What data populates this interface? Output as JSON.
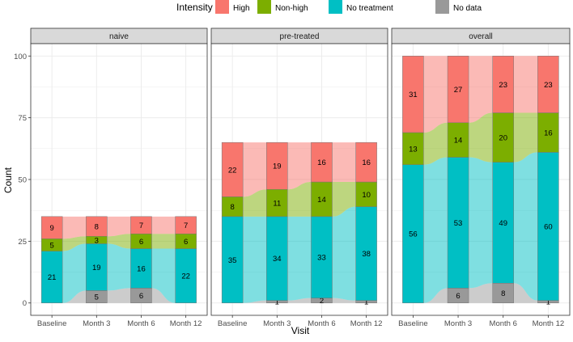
{
  "chart_data": {
    "type": "alluvial-bar",
    "xlabel": "Visit",
    "ylabel": "Count",
    "ylim": [
      0,
      100
    ],
    "yticks": [
      0,
      25,
      50,
      75,
      100
    ],
    "categories": [
      "Baseline",
      "Month 3",
      "Month 6",
      "Month 12"
    ],
    "legend": {
      "title": "Intensity",
      "position": "top",
      "items": [
        {
          "key": "high",
          "label": "High",
          "color": "#F8766D"
        },
        {
          "key": "nonhigh",
          "label": "Non-high",
          "color": "#7CAE00"
        },
        {
          "key": "notreat",
          "label": "No treatment",
          "color": "#00BFC4"
        },
        {
          "key": "nodata",
          "label": "No data",
          "color": "#999999"
        }
      ]
    },
    "panels": [
      {
        "title": "naive",
        "stacks": [
          {
            "nodata": 0,
            "notreat": 21,
            "nonhigh": 5,
            "high": 9
          },
          {
            "nodata": 5,
            "notreat": 19,
            "nonhigh": 3,
            "high": 8
          },
          {
            "nodata": 6,
            "notreat": 16,
            "nonhigh": 6,
            "high": 7
          },
          {
            "nodata": 0,
            "notreat": 22,
            "nonhigh": 6,
            "high": 7
          }
        ]
      },
      {
        "title": "pre-treated",
        "stacks": [
          {
            "nodata": 0,
            "notreat": 35,
            "nonhigh": 8,
            "high": 22
          },
          {
            "nodata": 1,
            "notreat": 34,
            "nonhigh": 11,
            "high": 19
          },
          {
            "nodata": 2,
            "notreat": 33,
            "nonhigh": 14,
            "high": 16
          },
          {
            "nodata": 1,
            "notreat": 38,
            "nonhigh": 10,
            "high": 16
          }
        ]
      },
      {
        "title": "overall",
        "stacks": [
          {
            "nodata": 0,
            "notreat": 56,
            "nonhigh": 13,
            "high": 31
          },
          {
            "nodata": 6,
            "notreat": 53,
            "nonhigh": 14,
            "high": 27
          },
          {
            "nodata": 8,
            "notreat": 49,
            "nonhigh": 20,
            "high": 23
          },
          {
            "nodata": 1,
            "notreat": 60,
            "nonhigh": 16,
            "high": 23
          }
        ]
      }
    ]
  }
}
